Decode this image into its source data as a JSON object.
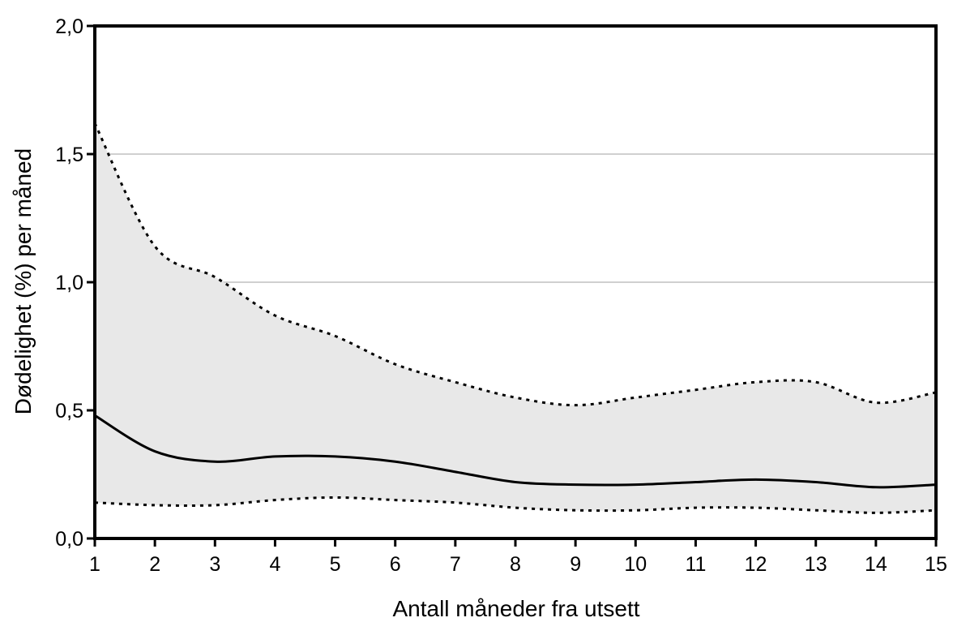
{
  "chart_data": {
    "type": "line",
    "title": "",
    "xlabel": "Antall måneder fra utsett",
    "ylabel": "Dødelighet (%) per måned",
    "xlim": [
      1,
      15
    ],
    "ylim": [
      0,
      2.0
    ],
    "x_ticks": [
      1,
      2,
      3,
      4,
      5,
      6,
      7,
      8,
      9,
      10,
      11,
      12,
      13,
      14,
      15
    ],
    "x_tick_labels": [
      "1",
      "2",
      "3",
      "4",
      "5",
      "6",
      "7",
      "8",
      "9",
      "10",
      "11",
      "12",
      "13",
      "14",
      "15"
    ],
    "y_ticks": [
      0,
      0.5,
      1.0,
      1.5,
      2.0
    ],
    "y_tick_labels": [
      "0,0",
      "0,5",
      "1,0",
      "1,5",
      "2,0"
    ],
    "grid": "horizontal",
    "legend": "none",
    "band_color": "#e8e8e8",
    "line_color": "#000000",
    "grid_color": "#c0c0c0",
    "x": [
      1,
      2,
      3,
      4,
      5,
      6,
      7,
      8,
      9,
      10,
      11,
      12,
      13,
      14,
      15
    ],
    "series": [
      {
        "role": "upper",
        "style": "dotted",
        "values": [
          1.62,
          1.14,
          1.02,
          0.87,
          0.79,
          0.68,
          0.61,
          0.55,
          0.52,
          0.55,
          0.58,
          0.61,
          0.61,
          0.53,
          0.57
        ]
      },
      {
        "role": "median",
        "style": "solid",
        "values": [
          0.48,
          0.34,
          0.3,
          0.32,
          0.32,
          0.3,
          0.26,
          0.22,
          0.21,
          0.21,
          0.22,
          0.23,
          0.22,
          0.2,
          0.21
        ]
      },
      {
        "role": "lower",
        "style": "dotted",
        "values": [
          0.14,
          0.13,
          0.13,
          0.15,
          0.16,
          0.15,
          0.14,
          0.12,
          0.11,
          0.11,
          0.12,
          0.12,
          0.11,
          0.1,
          0.11
        ]
      }
    ]
  }
}
